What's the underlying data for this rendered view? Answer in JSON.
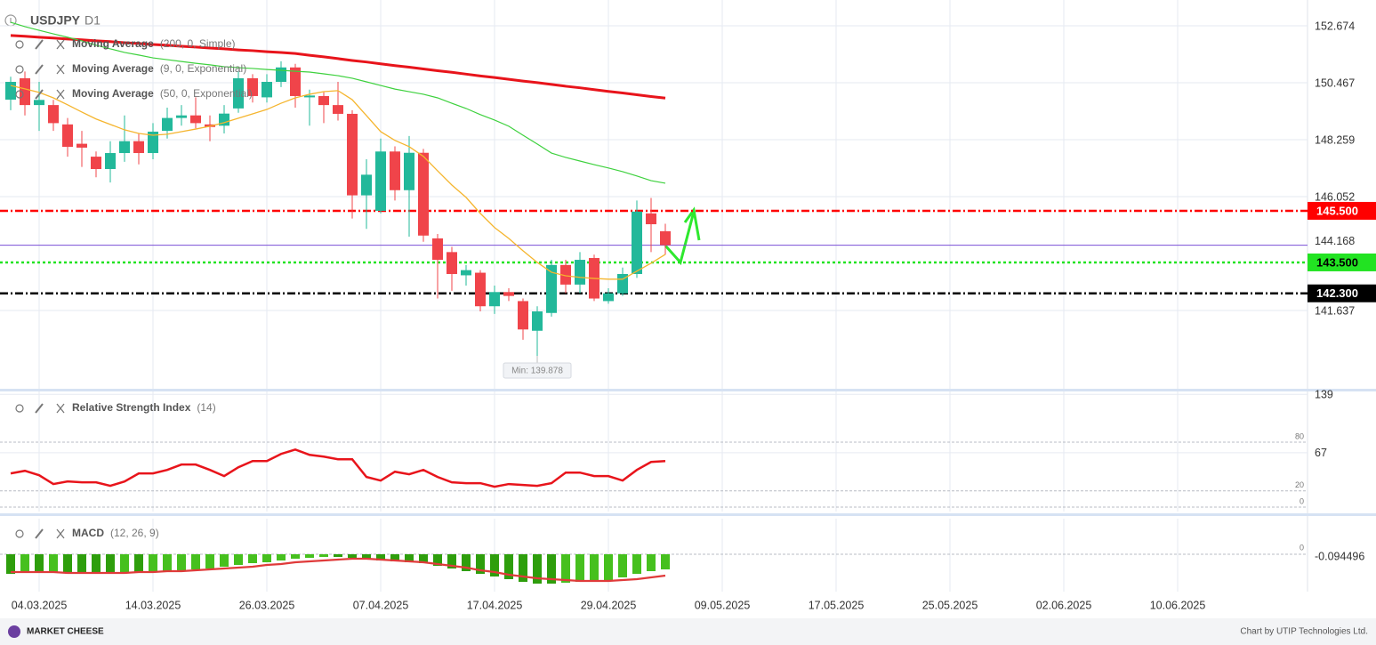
{
  "header": {
    "symbol": "USDJPY",
    "timeframe": "D1"
  },
  "footer": {
    "logo": "MARKET CHEESE",
    "credit": "Chart by UTIP Technologies Ltd."
  },
  "chart_data": [
    {
      "type": "candlestick",
      "x": [
        0,
        1,
        2,
        3,
        4,
        5,
        6,
        7,
        8,
        9,
        10,
        11,
        12,
        13,
        14,
        15,
        16,
        17,
        18,
        19,
        20,
        21,
        22,
        23,
        24,
        25,
        26,
        27,
        28,
        29,
        30,
        31,
        32,
        33,
        34,
        35,
        36,
        37,
        38,
        39,
        40,
        41,
        42,
        43,
        44,
        45,
        46
      ],
      "xlim": [
        -0.75,
        91.125
      ],
      "xticks": [
        {
          "value": 2,
          "label": "04.03.2025"
        },
        {
          "value": 10,
          "label": "14.03.2025"
        },
        {
          "value": 18,
          "label": "26.03.2025"
        },
        {
          "value": 26,
          "label": "07.04.2025"
        },
        {
          "value": 34,
          "label": "17.04.2025"
        },
        {
          "value": 42,
          "label": "29.04.2025"
        },
        {
          "value": 50,
          "label": "09.05.2025"
        },
        {
          "value": 58,
          "label": "17.05.2025"
        },
        {
          "value": 66,
          "label": "25.05.2025"
        },
        {
          "value": 74,
          "label": "02.06.2025"
        },
        {
          "value": 82,
          "label": "10.06.2025"
        }
      ],
      "ylim": [
        138.6,
        153.674
      ],
      "yticks": [
        152.674,
        150.467,
        148.259,
        146.052,
        141.637
      ],
      "grid": true,
      "up_color": "#22b89a",
      "down_color": "#f0444a",
      "open": [
        149.81,
        150.64,
        149.6,
        149.6,
        148.85,
        148.1,
        147.6,
        147.12,
        147.74,
        148.2,
        147.74,
        148.6,
        149.1,
        149.2,
        148.85,
        148.8,
        149.47,
        150.64,
        149.9,
        150.5,
        151.06,
        149.9,
        149.95,
        149.6,
        149.26,
        146.1,
        145.5,
        147.8,
        146.3,
        147.75,
        144.43,
        143.9,
        143.0,
        143.1,
        141.8,
        142.35,
        142.0,
        140.85,
        141.54,
        143.4,
        142.64,
        143.67,
        142.0,
        142.3,
        143.05,
        145.4,
        144.71
      ],
      "high": [
        150.7,
        150.9,
        150.5,
        149.8,
        149.1,
        148.6,
        147.8,
        148.2,
        149.2,
        148.5,
        148.9,
        149.5,
        149.6,
        149.9,
        149.2,
        149.6,
        150.9,
        150.8,
        150.8,
        151.3,
        151.2,
        150.2,
        150.1,
        150.5,
        149.4,
        147.5,
        148.3,
        148.0,
        148.4,
        147.9,
        144.6,
        144.1,
        143.4,
        143.2,
        142.6,
        142.5,
        142.1,
        141.8,
        143.6,
        143.6,
        143.9,
        143.8,
        142.5,
        143.3,
        145.9,
        146.0,
        145.0
      ],
      "low": [
        149.4,
        149.2,
        148.6,
        148.6,
        147.6,
        147.2,
        146.8,
        146.6,
        147.4,
        147.3,
        147.5,
        148.3,
        148.8,
        148.7,
        148.2,
        148.5,
        149.3,
        149.7,
        149.7,
        150.3,
        149.5,
        148.8,
        148.9,
        149.0,
        145.2,
        144.8,
        145.4,
        145.9,
        144.5,
        144.3,
        142.1,
        142.4,
        142.6,
        141.6,
        141.5,
        142.0,
        140.5,
        139.878,
        141.4,
        142.3,
        142.3,
        142.0,
        141.9,
        142.2,
        142.9,
        143.9,
        143.8
      ],
      "close": [
        150.5,
        149.6,
        149.8,
        148.9,
        147.98,
        147.95,
        147.12,
        147.74,
        148.2,
        147.74,
        148.57,
        149.1,
        149.2,
        148.9,
        148.75,
        149.27,
        150.64,
        149.95,
        150.5,
        151.06,
        149.95,
        149.97,
        149.6,
        149.26,
        146.1,
        146.9,
        147.8,
        146.3,
        147.75,
        144.54,
        143.6,
        143.05,
        143.2,
        141.8,
        142.35,
        142.2,
        140.9,
        141.6,
        143.4,
        142.64,
        143.6,
        142.1,
        142.3,
        143.05,
        145.47,
        144.98,
        144.168
      ],
      "lines": [
        {
          "name": "Moving Average",
          "params": "(200, 0, Simple)",
          "color": "#e8141b",
          "width": 3,
          "values": [
            152.3,
            152.27,
            152.23,
            152.2,
            152.16,
            152.13,
            152.09,
            152.06,
            152.02,
            151.99,
            151.95,
            151.92,
            151.88,
            151.85,
            151.81,
            151.78,
            151.74,
            151.71,
            151.67,
            151.64,
            151.6,
            151.53,
            151.47,
            151.4,
            151.33,
            151.27,
            151.2,
            151.13,
            151.07,
            151.0,
            150.93,
            150.87,
            150.8,
            150.73,
            150.67,
            150.6,
            150.53,
            150.47,
            150.4,
            150.33,
            150.27,
            150.2,
            150.13,
            150.07,
            150.0,
            149.93,
            149.87
          ]
        },
        {
          "name": "Moving Average",
          "params": "(9, 0, Exponential)",
          "color": "#f5b52e",
          "width": 1.3,
          "values": [
            150.36,
            150.23,
            150.09,
            149.88,
            149.61,
            149.33,
            149.06,
            148.85,
            148.64,
            148.5,
            148.43,
            148.47,
            148.57,
            148.67,
            148.78,
            148.92,
            149.09,
            149.26,
            149.43,
            149.67,
            149.88,
            150.02,
            150.12,
            150.16,
            149.81,
            149.19,
            148.57,
            148.23,
            147.99,
            147.61,
            147.05,
            146.5,
            146.02,
            145.4,
            144.85,
            144.43,
            143.95,
            143.5,
            143.12,
            142.98,
            142.92,
            142.88,
            142.85,
            142.85,
            143.16,
            143.47,
            143.81
          ]
        },
        {
          "name": "Moving Average",
          "params": "(50, 0, Exponential)",
          "color": "#3ed13e",
          "width": 1.2,
          "values": [
            152.81,
            152.64,
            152.5,
            152.36,
            152.23,
            152.09,
            151.92,
            151.78,
            151.64,
            151.54,
            151.43,
            151.36,
            151.29,
            151.22,
            151.16,
            151.09,
            151.05,
            151.02,
            150.98,
            150.95,
            150.91,
            150.88,
            150.81,
            150.74,
            150.64,
            150.5,
            150.36,
            150.22,
            150.12,
            150.02,
            149.88,
            149.67,
            149.47,
            149.23,
            149.02,
            148.78,
            148.43,
            148.09,
            147.74,
            147.57,
            147.43,
            147.29,
            147.16,
            147.02,
            146.85,
            146.67,
            146.57
          ]
        }
      ],
      "levels": [
        {
          "value": 145.5,
          "label": "145.500",
          "color": "#ff0000",
          "text_color": "#ffffff",
          "style": "dashdot"
        },
        {
          "value": 143.5,
          "label": "143.500",
          "color": "#22e322",
          "text_color": "#000000",
          "style": "dotted"
        },
        {
          "value": 142.3,
          "label": "142.300",
          "color": "#000000",
          "text_color": "#ffffff",
          "style": "dashdot"
        }
      ],
      "current_price": {
        "value": 144.168,
        "label": "144.168",
        "color": "#7a4fd6"
      },
      "annotation": "Min: 139.878"
    },
    {
      "type": "line",
      "name": "Relative Strength Index",
      "params": "(14)",
      "color": "#e8141b",
      "values": [
        41.5,
        44.7,
        39.3,
        28.4,
        31.6,
        30.5,
        30.5,
        26.2,
        31.6,
        41.5,
        41.5,
        45.8,
        52.4,
        52.4,
        45.8,
        38.2,
        49.1,
        56.7,
        56.7,
        65.5,
        70.9,
        64.4,
        62.2,
        58.9,
        58.9,
        37.1,
        32.7,
        43.6,
        40.4,
        45.8,
        37.1,
        30.5,
        29.5,
        29.5,
        25.1,
        28.4,
        27.3,
        26.2,
        29.5,
        42.5,
        42.5,
        38.2,
        38.2,
        32.7,
        45.8,
        55.6,
        56.7
      ],
      "ylim": [
        -5.5,
        142.5
      ],
      "yticks": [
        139,
        67
      ],
      "levels": [
        80,
        20,
        0
      ]
    },
    {
      "type": "bar",
      "name": "MACD",
      "params": "(12, 26, 9)",
      "color": "#2e9e0c",
      "color_alt": "#46c01e",
      "values": [
        -0.88,
        -0.84,
        -0.84,
        -0.8,
        -0.84,
        -0.88,
        -0.88,
        -0.88,
        -0.84,
        -0.84,
        -0.8,
        -0.76,
        -0.72,
        -0.68,
        -0.64,
        -0.56,
        -0.48,
        -0.4,
        -0.36,
        -0.28,
        -0.2,
        -0.16,
        -0.12,
        -0.12,
        -0.16,
        -0.2,
        -0.28,
        -0.32,
        -0.36,
        -0.4,
        -0.52,
        -0.64,
        -0.76,
        -0.88,
        -1.0,
        -1.12,
        -1.24,
        -1.32,
        -1.32,
        -1.28,
        -1.24,
        -1.2,
        -1.16,
        -1.04,
        -0.88,
        -0.76,
        -0.68
      ],
      "signal": {
        "color": "#e03a3a",
        "values": [
          -0.8,
          -0.8,
          -0.8,
          -0.8,
          -0.84,
          -0.84,
          -0.84,
          -0.84,
          -0.84,
          -0.8,
          -0.8,
          -0.76,
          -0.76,
          -0.72,
          -0.68,
          -0.64,
          -0.6,
          -0.56,
          -0.48,
          -0.44,
          -0.36,
          -0.32,
          -0.28,
          -0.24,
          -0.2,
          -0.2,
          -0.24,
          -0.28,
          -0.32,
          -0.36,
          -0.44,
          -0.52,
          -0.6,
          -0.72,
          -0.8,
          -0.92,
          -1.0,
          -1.08,
          -1.12,
          -1.16,
          -1.2,
          -1.2,
          -1.2,
          -1.16,
          -1.12,
          -1.04,
          -0.96
        ]
      },
      "ylim": [
        -1.68,
        1.6
      ],
      "yticks": [
        0,
        -0.094496
      ]
    }
  ]
}
